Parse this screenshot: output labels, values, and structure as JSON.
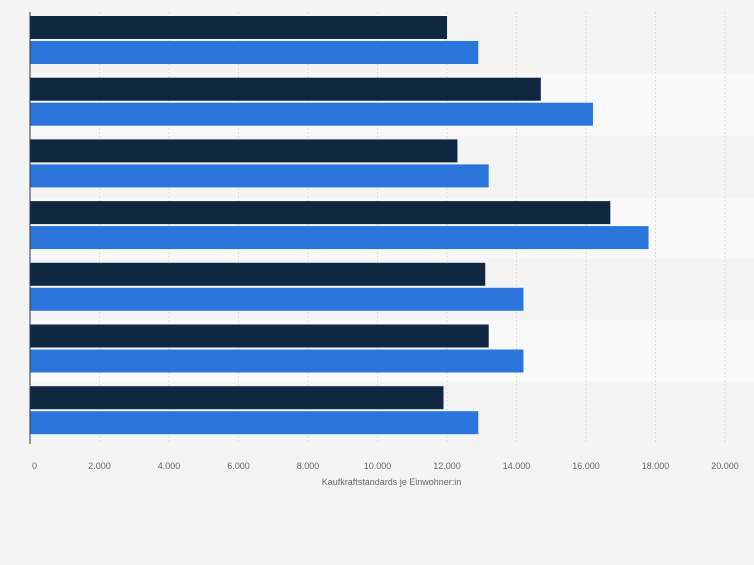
{
  "chart_data": {
    "type": "bar",
    "orientation": "horizontal",
    "title": "",
    "xlabel": "Kaufkraftstandards je Einwohner:in",
    "ylabel": "",
    "xlim": [
      0,
      20000
    ],
    "x_ticks": [
      0,
      2000,
      4000,
      6000,
      8000,
      10000,
      12000,
      14000,
      16000,
      18000,
      20000
    ],
    "x_tick_labels": [
      "0",
      "2.000",
      "4.000",
      "6.000",
      "8.000",
      "10.000",
      "12.000",
      "14.000",
      "16.000",
      "18.000",
      "20.000"
    ],
    "grid": true,
    "categories": [
      "",
      "",
      "",
      "",
      "",
      "",
      ""
    ],
    "series": [
      {
        "color": "#0f2741",
        "values": [
          12000,
          14700,
          12300,
          16700,
          13100,
          13200,
          11900
        ]
      },
      {
        "color": "#2a76dd",
        "values": [
          12900,
          16200,
          13200,
          17800,
          14200,
          14200,
          12900
        ]
      }
    ]
  }
}
